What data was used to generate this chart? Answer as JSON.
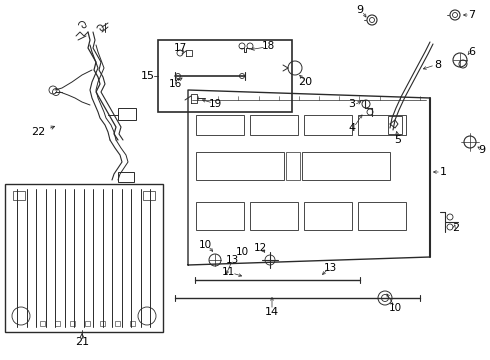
{
  "bg_color": "#ffffff",
  "line_color": "#2a2a2a",
  "label_color": "#000000",
  "fig_w": 4.9,
  "fig_h": 3.6,
  "dpi": 100
}
